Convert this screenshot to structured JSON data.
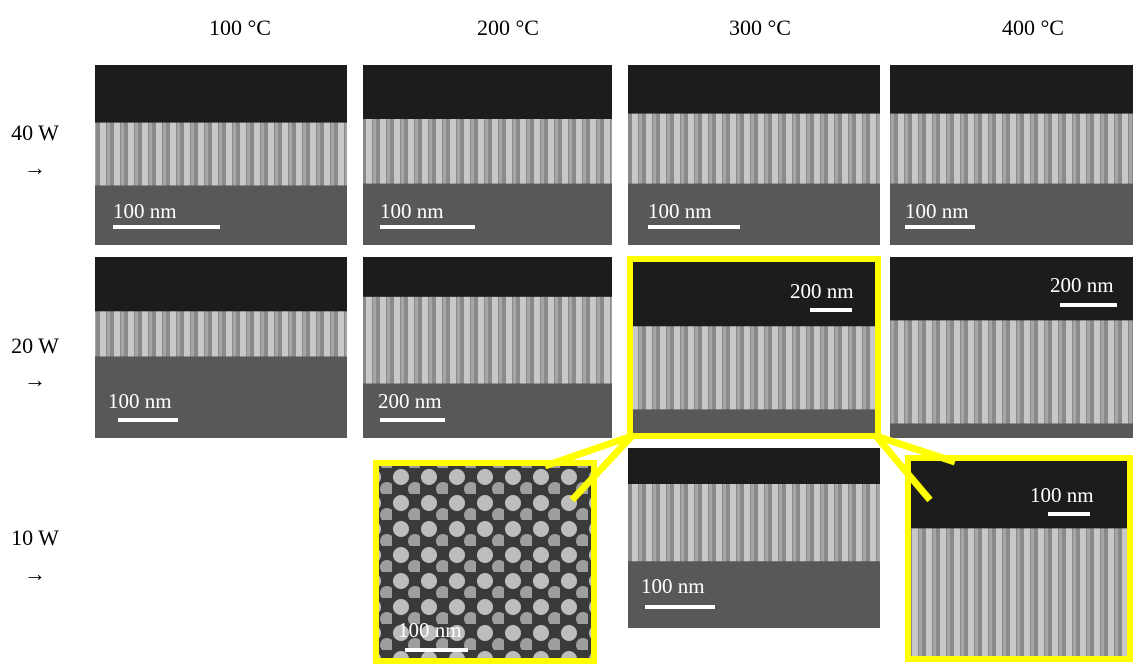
{
  "headers": {
    "columns": [
      "100 °C",
      "200 °C",
      "300 °C",
      "400 °C"
    ]
  },
  "rows": [
    {
      "label": "40 W",
      "arrow": "→"
    },
    {
      "label": "20 W",
      "arrow": "→"
    },
    {
      "label": "10 W",
      "arrow": "→"
    }
  ],
  "panels": [
    {
      "scale": "100 nm"
    },
    {
      "scale": "100 nm"
    },
    {
      "scale": "100 nm"
    },
    {
      "scale": "100 nm"
    },
    {
      "scale": "100 nm"
    },
    {
      "scale": "200 nm"
    },
    {
      "scale": "200 nm"
    },
    {
      "scale": "200 nm"
    },
    {
      "scale": "100 nm"
    },
    {
      "scale": "100 nm"
    },
    {
      "scale": "100 nm"
    }
  ]
}
